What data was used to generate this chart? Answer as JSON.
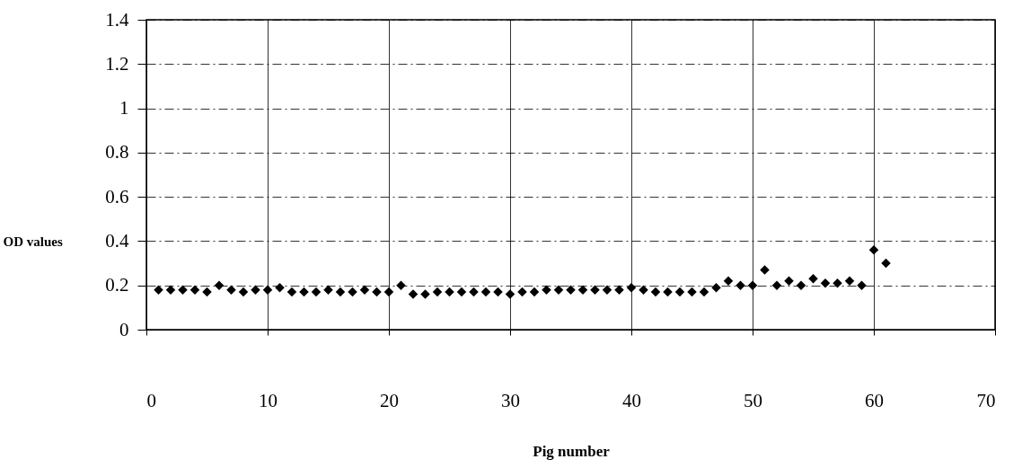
{
  "chart_data": {
    "type": "scatter",
    "xlabel": "Pig number",
    "ylabel": "OD values",
    "x": [
      1,
      2,
      3,
      4,
      5,
      6,
      7,
      8,
      9,
      10,
      11,
      12,
      13,
      14,
      15,
      16,
      17,
      18,
      19,
      20,
      21,
      22,
      23,
      24,
      25,
      26,
      27,
      28,
      29,
      30,
      31,
      32,
      33,
      34,
      35,
      36,
      37,
      38,
      39,
      40,
      41,
      42,
      43,
      44,
      45,
      46,
      47,
      48,
      49,
      50,
      51,
      52,
      53,
      54,
      55,
      56,
      57,
      58,
      59,
      60,
      61
    ],
    "series": [
      {
        "color": "#000000",
        "values": [
          0.18,
          0.18,
          0.18,
          0.18,
          0.17,
          0.2,
          0.18,
          0.17,
          0.18,
          0.18,
          0.19,
          0.17,
          0.17,
          0.17,
          0.18,
          0.17,
          0.17,
          0.18,
          0.17,
          0.17,
          0.2,
          0.16,
          0.16,
          0.17,
          0.17,
          0.17,
          0.17,
          0.17,
          0.17,
          0.16,
          0.17,
          0.17,
          0.18,
          0.18,
          0.18,
          0.18,
          0.18,
          0.18,
          0.18,
          0.19,
          0.18,
          0.17,
          0.17,
          0.17,
          0.17,
          0.17,
          0.19,
          0.22,
          0.2,
          0.2,
          0.27,
          0.2,
          0.22,
          0.2,
          0.23,
          0.21,
          0.21,
          0.22,
          0.2,
          0.36,
          0.3
        ]
      }
    ],
    "xlim": [
      0,
      70
    ],
    "xticks": [
      0,
      10,
      20,
      30,
      40,
      50,
      60,
      70
    ],
    "ylim": [
      0,
      1.4
    ],
    "yticks": [
      0,
      0.2,
      0.4,
      0.6,
      0.8,
      1,
      1.2,
      1.4
    ],
    "grid": true,
    "marker": "diamond"
  }
}
